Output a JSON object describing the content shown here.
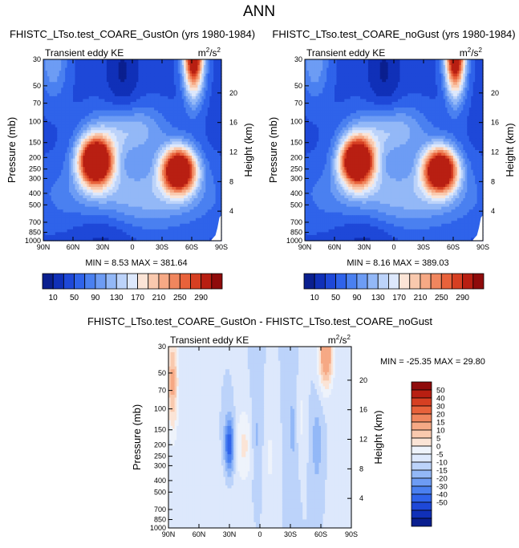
{
  "figure_title": "ANN",
  "colors": {
    "seq_palette": [
      "#0a1f8f",
      "#1030b8",
      "#1e48d8",
      "#2f63ea",
      "#4a80f0",
      "#6d9cf4",
      "#93b8f7",
      "#bcd3fa",
      "#dde8fc",
      "#fbe4d6",
      "#f9c9ae",
      "#f6a985",
      "#f0865e",
      "#e8623b",
      "#d63f22",
      "#b81f12",
      "#8f0b0b"
    ],
    "diff_palette": [
      "#0a1f8f",
      "#1030b8",
      "#1e48d8",
      "#2f63ea",
      "#4a80f0",
      "#6d9cf4",
      "#93b8f7",
      "#bcd3fa",
      "#dde8fc",
      "#eef3fb",
      "#fbe4d6",
      "#f9c9ae",
      "#f6a985",
      "#f0865e",
      "#e8623b",
      "#d63f22",
      "#b81f12",
      "#8f0b0b"
    ]
  },
  "chart_data": [
    {
      "type": "heatmap",
      "title": "FHISTC_LTso.test_COARE_GustOn (yrs 1980-1984)",
      "left_string": "Transient eddy KE",
      "units_base": "m",
      "units_exp": "2",
      "units_den": "/s",
      "units_den_exp": "2",
      "ylabel": "Pressure (mb)",
      "ylabel_right": "Height (km)",
      "x_ticks": [
        "90N",
        "60N",
        "30N",
        "0",
        "30S",
        "60S",
        "90S"
      ],
      "x_values": [
        90,
        60,
        30,
        0,
        -30,
        -60,
        -90
      ],
      "y_ticks": [
        "30",
        "50",
        "70",
        "100",
        "150",
        "200",
        "250",
        "300",
        "400",
        "500",
        "700",
        "850",
        "1000"
      ],
      "y_values": [
        30,
        50,
        70,
        100,
        150,
        200,
        250,
        300,
        400,
        500,
        700,
        850,
        1000
      ],
      "height_ticks": [
        "20",
        "16",
        "12",
        "8",
        "4"
      ],
      "height_values": [
        20,
        16,
        12,
        8,
        4
      ],
      "ylim": [
        1000,
        30
      ],
      "xlim": [
        90,
        -90
      ],
      "min_label": "MIN = ",
      "min_value": "8.53",
      "max_label": "MAX = ",
      "max_value": "381.64",
      "colorbar_levels": [
        10,
        30,
        50,
        70,
        90,
        110,
        130,
        150,
        170,
        190,
        210,
        230,
        250,
        270,
        290
      ],
      "colorbar_labels": [
        "10",
        "50",
        "90",
        "130",
        "170",
        "210",
        "250",
        "290"
      ],
      "features": [
        {
          "kind": "jet_max",
          "lat": 37,
          "p": 210,
          "value": 381
        },
        {
          "kind": "jet_max",
          "lat": -47,
          "p": 250,
          "value": 360
        },
        {
          "kind": "strat_max",
          "lat": -62,
          "p": 30,
          "value": 340
        }
      ]
    },
    {
      "type": "heatmap",
      "title": "FHISTC_LTso.test_COARE_noGust (yrs 1980-1984)",
      "left_string": "Transient eddy KE",
      "units_base": "m",
      "units_exp": "2",
      "units_den": "/s",
      "units_den_exp": "2",
      "ylabel": "Pressure (mb)",
      "ylabel_right": "Height (km)",
      "x_ticks": [
        "90N",
        "60N",
        "30N",
        "0",
        "30S",
        "60S",
        "90S"
      ],
      "x_values": [
        90,
        60,
        30,
        0,
        -30,
        -60,
        -90
      ],
      "y_ticks": [
        "30",
        "50",
        "70",
        "100",
        "150",
        "200",
        "250",
        "300",
        "400",
        "500",
        "700",
        "850",
        "1000"
      ],
      "y_values": [
        30,
        50,
        70,
        100,
        150,
        200,
        250,
        300,
        400,
        500,
        700,
        850,
        1000
      ],
      "height_ticks": [
        "20",
        "16",
        "12",
        "8",
        "4"
      ],
      "height_values": [
        20,
        16,
        12,
        8,
        4
      ],
      "ylim": [
        1000,
        30
      ],
      "xlim": [
        90,
        -90
      ],
      "min_label": "MIN = ",
      "min_value": "8.16",
      "max_label": "MAX = ",
      "max_value": "389.03",
      "colorbar_levels": [
        10,
        30,
        50,
        70,
        90,
        110,
        130,
        150,
        170,
        190,
        210,
        230,
        250,
        270,
        290
      ],
      "colorbar_labels": [
        "10",
        "50",
        "90",
        "130",
        "170",
        "210",
        "250",
        "290"
      ],
      "features": [
        {
          "kind": "jet_max",
          "lat": 37,
          "p": 210,
          "value": 389
        },
        {
          "kind": "jet_max",
          "lat": -47,
          "p": 250,
          "value": 365
        },
        {
          "kind": "strat_max",
          "lat": -62,
          "p": 30,
          "value": 345
        }
      ]
    },
    {
      "type": "heatmap",
      "title": "FHISTC_LTso.test_COARE_GustOn - FHISTC_LTso.test_COARE_noGust",
      "left_string": "Transient eddy KE",
      "units_base": "m",
      "units_exp": "2",
      "units_den": "/s",
      "units_den_exp": "2",
      "ylabel": "Pressure (mb)",
      "ylabel_right": "Height (km)",
      "x_ticks": [
        "90N",
        "60N",
        "30N",
        "0",
        "30S",
        "60S",
        "90S"
      ],
      "x_values": [
        90,
        60,
        30,
        0,
        -30,
        -60,
        -90
      ],
      "y_ticks": [
        "30",
        "50",
        "70",
        "100",
        "150",
        "200",
        "250",
        "300",
        "400",
        "500",
        "700",
        "850",
        "1000"
      ],
      "y_values": [
        30,
        50,
        70,
        100,
        150,
        200,
        250,
        300,
        400,
        500,
        700,
        850,
        1000
      ],
      "height_ticks": [
        "20",
        "16",
        "12",
        "8",
        "4"
      ],
      "height_values": [
        20,
        16,
        12,
        8,
        4
      ],
      "ylim": [
        1000,
        30
      ],
      "xlim": [
        90,
        -90
      ],
      "min_label": "MIN = ",
      "min_value": "-25.35",
      "max_label": "MAX = ",
      "max_value": "29.80",
      "colorbar_levels": [
        -50,
        -40,
        -30,
        -20,
        -15,
        -10,
        -5,
        0,
        5,
        10,
        15,
        20,
        30,
        40,
        50
      ],
      "colorbar_labels": [
        "50",
        "40",
        "30",
        "20",
        "15",
        "10",
        "5",
        "0",
        "-5",
        "-10",
        "-15",
        "-20",
        "-30",
        "-40",
        "-50"
      ],
      "features": [
        {
          "kind": "diff_max",
          "lat": -65,
          "p": 35,
          "value": 29.8
        },
        {
          "kind": "diff_max",
          "lat": 85,
          "p": 50,
          "value": 20
        },
        {
          "kind": "diff_min",
          "lat": 30,
          "p": 200,
          "value": -25.35
        },
        {
          "kind": "diff_max",
          "lat": 15,
          "p": 200,
          "value": 10
        }
      ]
    }
  ]
}
